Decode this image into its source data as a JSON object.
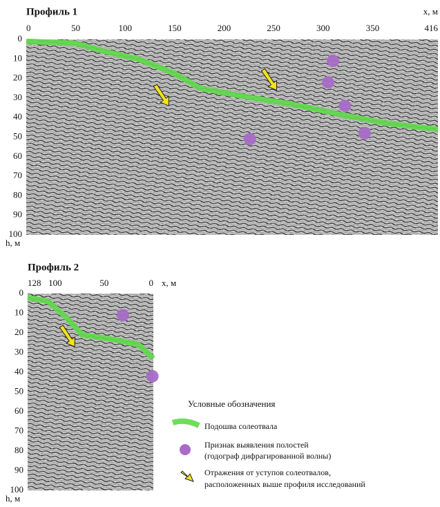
{
  "profiles": [
    {
      "title": "Профиль 1",
      "x_label": "x, м",
      "y_label": "h, м",
      "xlim": [
        0,
        416
      ],
      "ylim": [
        0,
        100
      ],
      "xticks": [
        0,
        50,
        100,
        150,
        200,
        250,
        300,
        350,
        416
      ],
      "yticks": [
        0,
        10,
        20,
        30,
        40,
        50,
        60,
        70,
        80,
        90,
        100
      ],
      "base_line": {
        "x": [
          0,
          50,
          78,
          113,
          148,
          176,
          218,
          267,
          323,
          365,
          416
        ],
        "y": [
          1,
          2,
          6,
          10,
          17,
          25,
          29,
          33,
          39,
          43,
          46
        ]
      },
      "cavities": {
        "x": [
          310,
          305,
          322,
          226,
          342
        ],
        "y": [
          11,
          22,
          34,
          51,
          48
        ]
      },
      "arrows": {
        "x": [
          144,
          253
        ],
        "y": [
          34,
          26
        ]
      }
    },
    {
      "title": "Профиль 2",
      "x_label": "x, м",
      "y_label": "h, м",
      "xlim": [
        128,
        0
      ],
      "ylim": [
        0,
        100
      ],
      "xticks": [
        128,
        100,
        50,
        0
      ],
      "yticks": [
        0,
        10,
        20,
        30,
        40,
        50,
        60,
        70,
        80,
        90,
        100
      ],
      "base_line": {
        "x": [
          128,
          107,
          89,
          72,
          44,
          15,
          0
        ],
        "y": [
          2,
          4,
          12,
          21,
          23,
          26,
          33
        ]
      },
      "cavities": {
        "x": [
          31,
          1
        ],
        "y": [
          11,
          42
        ]
      },
      "arrows": {
        "x": [
          80
        ],
        "y": [
          27
        ]
      }
    }
  ],
  "legend": {
    "title": "Условные обозначения",
    "items": [
      [
        "Подошва солеотвала"
      ],
      [
        "Признак выявления полостей",
        "(годограф дифрагированной волны)"
      ],
      [
        "Отражения от уступов солеотвалов,",
        "расположенных выше профиля исследований"
      ]
    ]
  }
}
